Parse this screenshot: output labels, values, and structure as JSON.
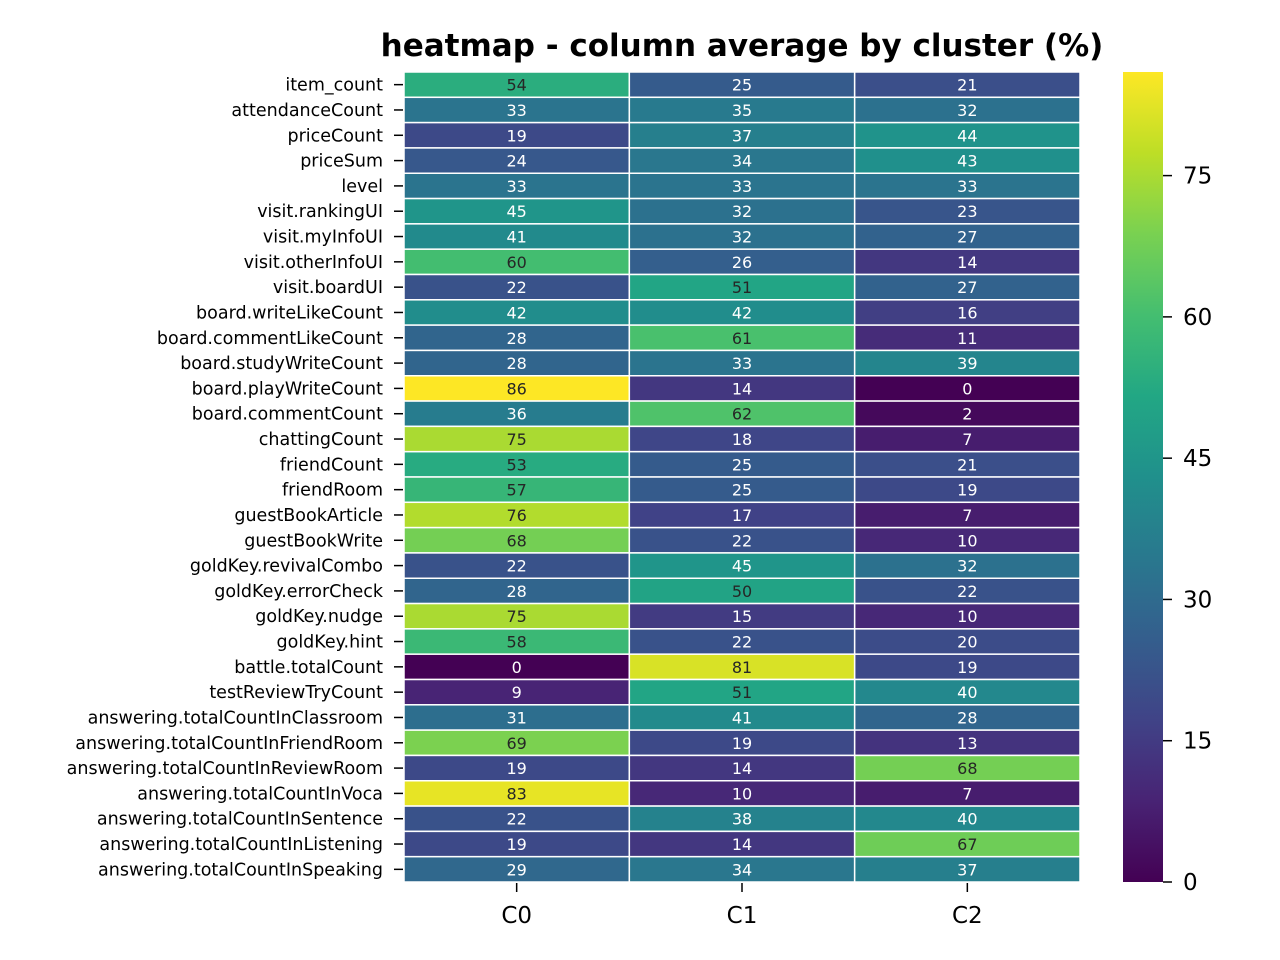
{
  "chart_data": {
    "type": "heatmap",
    "title": "heatmap - column average by cluster (%)",
    "xlabel": "",
    "ylabel": "",
    "columns": [
      "C0",
      "C1",
      "C2"
    ],
    "rows": [
      "item_count",
      "attendanceCount",
      "priceCount",
      "priceSum",
      "level",
      "visit.rankingUI",
      "visit.myInfoUI",
      "visit.otherInfoUI",
      "visit.boardUI",
      "board.writeLikeCount",
      "board.commentLikeCount",
      "board.studyWriteCount",
      "board.playWriteCount",
      "board.commentCount",
      "chattingCount",
      "friendCount",
      "friendRoom",
      "guestBookArticle",
      "guestBookWrite",
      "goldKey.revivalCombo",
      "goldKey.errorCheck",
      "goldKey.nudge",
      "goldKey.hint",
      "battle.totalCount",
      "testReviewTryCount",
      "answering.totalCountInClassroom",
      "answering.totalCountInFriendRoom",
      "answering.totalCountInReviewRoom",
      "answering.totalCountInVoca",
      "answering.totalCountInSentence",
      "answering.totalCountInListening",
      "answering.totalCountInSpeaking"
    ],
    "values": [
      [
        54,
        25,
        21
      ],
      [
        33,
        35,
        32
      ],
      [
        19,
        37,
        44
      ],
      [
        24,
        34,
        43
      ],
      [
        33,
        33,
        33
      ],
      [
        45,
        32,
        23
      ],
      [
        41,
        32,
        27
      ],
      [
        60,
        26,
        14
      ],
      [
        22,
        51,
        27
      ],
      [
        42,
        42,
        16
      ],
      [
        28,
        61,
        11
      ],
      [
        28,
        33,
        39
      ],
      [
        86,
        14,
        0
      ],
      [
        36,
        62,
        2
      ],
      [
        75,
        18,
        7
      ],
      [
        53,
        25,
        21
      ],
      [
        57,
        25,
        19
      ],
      [
        76,
        17,
        7
      ],
      [
        68,
        22,
        10
      ],
      [
        22,
        45,
        32
      ],
      [
        28,
        50,
        22
      ],
      [
        75,
        15,
        10
      ],
      [
        58,
        22,
        20
      ],
      [
        0,
        81,
        19
      ],
      [
        9,
        51,
        40
      ],
      [
        31,
        41,
        28
      ],
      [
        69,
        19,
        13
      ],
      [
        19,
        14,
        68
      ],
      [
        83,
        10,
        7
      ],
      [
        22,
        38,
        40
      ],
      [
        19,
        14,
        67
      ],
      [
        29,
        34,
        37
      ]
    ],
    "colormap": "viridis",
    "vmin": 0,
    "vmax": 86,
    "colorbar_ticks": [
      0,
      15,
      30,
      45,
      60,
      75
    ],
    "annotations": true,
    "cell_border_color": "#ffffff"
  }
}
